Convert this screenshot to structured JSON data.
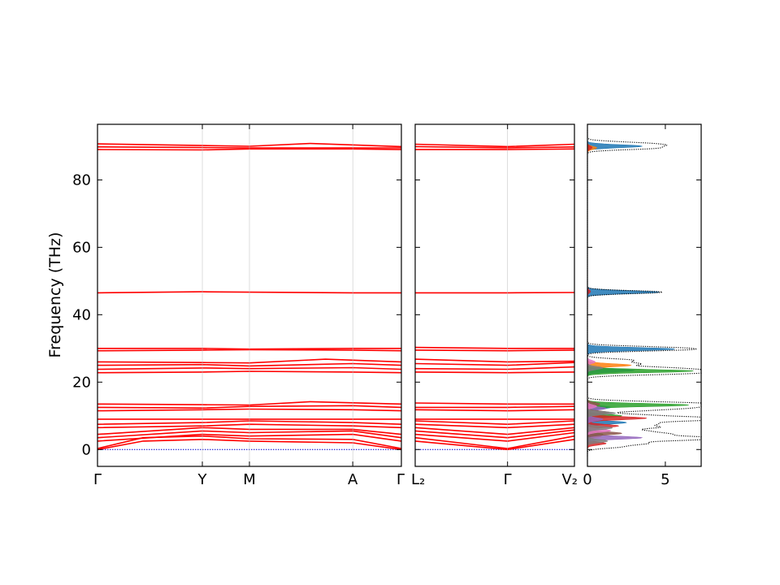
{
  "chart_data": [
    {
      "type": "line",
      "panel": "band-structure-path-1",
      "ylabel": "Frequency (THz)",
      "ylim": [
        -5,
        96.5
      ],
      "yticks": [
        0,
        20,
        40,
        60,
        80
      ],
      "xticks": [
        {
          "label": "Γ",
          "pos": 0.0
        },
        {
          "label": "Y",
          "pos": 0.345
        },
        {
          "label": "M",
          "pos": 0.5
        },
        {
          "label": "A",
          "pos": 0.84
        },
        {
          "label": "Γ",
          "pos": 1.0
        }
      ],
      "band_color": "#ff0000",
      "acoustic_color": "#0000cc",
      "bands": [
        {
          "x": [
            0,
            0.345,
            0.5,
            0.84,
            1
          ],
          "y": [
            0,
            0,
            0,
            0,
            0
          ],
          "acoustic": true
        },
        {
          "x": [
            0,
            0.15,
            0.345,
            0.5,
            0.84,
            1
          ],
          "y": [
            0,
            2.5,
            3.0,
            2.5,
            2.0,
            0
          ]
        },
        {
          "x": [
            0,
            0.15,
            0.345,
            0.5,
            0.84,
            1
          ],
          "y": [
            0.3,
            3.5,
            4.0,
            3.2,
            3.0,
            0.3
          ]
        },
        {
          "x": [
            0,
            0.345,
            0.5,
            0.84,
            1
          ],
          "y": [
            2.5,
            4.5,
            4.0,
            4.5,
            2.5
          ]
        },
        {
          "x": [
            0,
            0.345,
            0.5,
            0.84,
            1
          ],
          "y": [
            3.5,
            5.5,
            5.0,
            5.5,
            3.5
          ]
        },
        {
          "x": [
            0,
            0.345,
            0.5,
            0.84,
            1
          ],
          "y": [
            4.5,
            6.5,
            6.0,
            6.0,
            4.5
          ]
        },
        {
          "x": [
            0,
            0.345,
            0.5,
            0.84,
            1
          ],
          "y": [
            6.5,
            7.0,
            7.5,
            7.0,
            6.5
          ]
        },
        {
          "x": [
            0,
            0.345,
            0.5,
            0.84,
            1
          ],
          "y": [
            7.5,
            8.0,
            8.5,
            8.0,
            7.5
          ]
        },
        {
          "x": [
            0,
            0.345,
            0.5,
            0.84,
            1
          ],
          "y": [
            9.0,
            9.0,
            9.0,
            9.0,
            9.0
          ]
        },
        {
          "x": [
            0,
            0.345,
            0.5,
            0.84,
            1
          ],
          "y": [
            11.5,
            11.8,
            12.0,
            11.8,
            11.5
          ]
        },
        {
          "x": [
            0,
            0.345,
            0.5,
            0.84,
            1
          ],
          "y": [
            12.5,
            12.3,
            12.8,
            13.0,
            12.5
          ]
        },
        {
          "x": [
            0,
            0.345,
            0.5,
            0.7,
            1
          ],
          "y": [
            13.5,
            13.3,
            13.2,
            14.2,
            13.5
          ]
        },
        {
          "x": [
            0,
            0.345,
            0.5,
            0.84,
            1
          ],
          "y": [
            22.8,
            23.0,
            23.2,
            23.0,
            22.8
          ]
        },
        {
          "x": [
            0,
            0.345,
            0.5,
            0.84,
            1
          ],
          "y": [
            23.8,
            24.2,
            24.0,
            24.3,
            23.8
          ]
        },
        {
          "x": [
            0,
            0.345,
            0.5,
            0.84,
            1
          ],
          "y": [
            25.0,
            25.2,
            24.8,
            25.5,
            25.0
          ]
        },
        {
          "x": [
            0,
            0.345,
            0.5,
            0.75,
            1
          ],
          "y": [
            26.0,
            25.8,
            25.7,
            26.8,
            26.0
          ]
        },
        {
          "x": [
            0,
            0.345,
            0.5,
            0.84,
            1
          ],
          "y": [
            29.3,
            29.5,
            29.6,
            29.5,
            29.3
          ]
        },
        {
          "x": [
            0,
            0.345,
            0.5,
            0.84,
            1
          ],
          "y": [
            30.0,
            30.0,
            29.8,
            30.0,
            30.0
          ]
        },
        {
          "x": [
            0,
            0.345,
            0.5,
            0.84,
            1
          ],
          "y": [
            46.5,
            46.8,
            46.7,
            46.5,
            46.5
          ]
        },
        {
          "x": [
            0,
            0.345,
            0.5,
            0.84,
            1
          ],
          "y": [
            89.0,
            88.9,
            89.2,
            89.2,
            89.0
          ]
        },
        {
          "x": [
            0,
            0.345,
            0.5,
            0.84,
            1
          ],
          "y": [
            89.8,
            89.6,
            89.5,
            89.5,
            89.5
          ]
        },
        {
          "x": [
            0,
            0.345,
            0.5,
            0.7,
            1
          ],
          "y": [
            90.7,
            90.2,
            90.0,
            90.8,
            89.9
          ]
        }
      ]
    },
    {
      "type": "line",
      "panel": "band-structure-path-2",
      "ylim": [
        -5,
        96.5
      ],
      "xticks": [
        {
          "label": "L₂",
          "pos": 0.0
        },
        {
          "label": "Γ",
          "pos": 0.58
        },
        {
          "label": "V₂",
          "pos": 1.0
        }
      ],
      "band_color": "#ff0000",
      "acoustic_color": "#0000cc",
      "bands": [
        {
          "x": [
            0,
            0.58,
            1
          ],
          "y": [
            0,
            0,
            0
          ],
          "acoustic": true
        },
        {
          "x": [
            0,
            0.58,
            1
          ],
          "y": [
            2.5,
            0,
            3.0
          ]
        },
        {
          "x": [
            0,
            0.58,
            1
          ],
          "y": [
            3.5,
            0.3,
            4.0
          ]
        },
        {
          "x": [
            0,
            0.58,
            1
          ],
          "y": [
            4.5,
            2.5,
            5.0
          ]
        },
        {
          "x": [
            0,
            0.58,
            1
          ],
          "y": [
            5.5,
            3.5,
            5.8
          ]
        },
        {
          "x": [
            0,
            0.58,
            1
          ],
          "y": [
            6.5,
            4.5,
            6.5
          ]
        },
        {
          "x": [
            0,
            0.58,
            1
          ],
          "y": [
            7.5,
            6.5,
            7.5
          ]
        },
        {
          "x": [
            0,
            0.58,
            1
          ],
          "y": [
            8.5,
            7.5,
            8.5
          ]
        },
        {
          "x": [
            0,
            0.58,
            1
          ],
          "y": [
            9.0,
            9.0,
            9.0
          ]
        },
        {
          "x": [
            0,
            0.58,
            1
          ],
          "y": [
            11.8,
            11.5,
            11.8
          ]
        },
        {
          "x": [
            0,
            0.58,
            1
          ],
          "y": [
            12.5,
            12.5,
            12.8
          ]
        },
        {
          "x": [
            0,
            0.58,
            1
          ],
          "y": [
            13.8,
            13.5,
            13.5
          ]
        },
        {
          "x": [
            0,
            0.58,
            1
          ],
          "y": [
            23.0,
            22.8,
            23.0
          ]
        },
        {
          "x": [
            0,
            0.58,
            1
          ],
          "y": [
            24.0,
            23.8,
            24.5
          ]
        },
        {
          "x": [
            0,
            0.58,
            1
          ],
          "y": [
            25.5,
            25.0,
            25.8
          ]
        },
        {
          "x": [
            0,
            0.58,
            1
          ],
          "y": [
            26.8,
            26.0,
            26.2
          ]
        },
        {
          "x": [
            0,
            0.58,
            1
          ],
          "y": [
            29.5,
            29.3,
            29.5
          ]
        },
        {
          "x": [
            0,
            0.58,
            1
          ],
          "y": [
            30.3,
            30.0,
            30.0
          ]
        },
        {
          "x": [
            0,
            0.58,
            1
          ],
          "y": [
            46.5,
            46.5,
            46.6
          ]
        },
        {
          "x": [
            0,
            0.58,
            1
          ],
          "y": [
            89.0,
            89.0,
            89.2
          ]
        },
        {
          "x": [
            0,
            0.58,
            1
          ],
          "y": [
            89.9,
            89.5,
            89.8
          ]
        },
        {
          "x": [
            0,
            0.58,
            1
          ],
          "y": [
            90.6,
            89.9,
            90.6
          ]
        }
      ]
    },
    {
      "type": "area",
      "panel": "density-of-states",
      "xlim": [
        0,
        7.3
      ],
      "ylim": [
        -5,
        96.5
      ],
      "xticks": [
        {
          "label": "0",
          "pos": 0
        },
        {
          "label": "5",
          "pos": 5
        }
      ],
      "total_color": "#000000",
      "series": [
        {
          "color": "#1f77b4",
          "peaks": [
            [
              90.0,
              3.5
            ],
            [
              46.7,
              4.6
            ],
            [
              29.8,
              5.6
            ],
            [
              23.5,
              3.0
            ],
            [
              12.5,
              1.5
            ],
            [
              8.0,
              2.5
            ]
          ]
        },
        {
          "color": "#ff7f0e",
          "peaks": [
            [
              89.5,
              0.6
            ],
            [
              25.0,
              2.8
            ],
            [
              13.0,
              0.8
            ],
            [
              10.0,
              1.2
            ],
            [
              4.0,
              0.9
            ]
          ]
        },
        {
          "color": "#2ca02c",
          "peaks": [
            [
              23.3,
              6.8
            ],
            [
              13.2,
              6.5
            ],
            [
              10.0,
              2.2
            ],
            [
              4.5,
              1.0
            ]
          ]
        },
        {
          "color": "#d62728",
          "peaks": [
            [
              89.6,
              0.3
            ],
            [
              46.9,
              0.2
            ],
            [
              9.3,
              3.8
            ],
            [
              7.0,
              2.0
            ],
            [
              1.8,
              1.2
            ]
          ]
        },
        {
          "color": "#9467bd",
          "peaks": [
            [
              12.2,
              1.2
            ],
            [
              9.0,
              1.0
            ],
            [
              3.5,
              3.5
            ]
          ]
        },
        {
          "color": "#8c564b",
          "peaks": [
            [
              13.5,
              0.8
            ],
            [
              11.0,
              1.4
            ],
            [
              4.8,
              2.2
            ]
          ]
        },
        {
          "color": "#e377c2",
          "peaks": [
            [
              26.0,
              0.5
            ],
            [
              12.8,
              0.6
            ],
            [
              5.6,
              1.5
            ]
          ]
        },
        {
          "color": "#7f7f7f",
          "peaks": [
            [
              24.2,
              1.0
            ],
            [
              10.8,
              1.8
            ],
            [
              6.4,
              1.6
            ],
            [
              2.5,
              1.3
            ]
          ]
        }
      ],
      "total_peaks": [
        [
          91.0,
          2.5
        ],
        [
          90.3,
          3.8
        ],
        [
          89.4,
          4.0
        ],
        [
          46.7,
          4.8
        ],
        [
          30.3,
          4.0
        ],
        [
          29.6,
          5.3
        ],
        [
          26.5,
          2.8
        ],
        [
          25.4,
          3.2
        ],
        [
          24.2,
          4.8
        ],
        [
          23.3,
          7.2
        ],
        [
          22.5,
          5.0
        ],
        [
          14.0,
          3.8
        ],
        [
          13.3,
          7.3
        ],
        [
          12.4,
          5.3
        ],
        [
          11.6,
          3.0
        ],
        [
          10.2,
          3.3
        ],
        [
          9.3,
          7.3
        ],
        [
          8.6,
          4.8
        ],
        [
          7.6,
          3.8
        ],
        [
          6.6,
          4.2
        ],
        [
          5.5,
          3.2
        ],
        [
          4.6,
          4.5
        ],
        [
          3.6,
          6.2
        ],
        [
          2.9,
          5.3
        ],
        [
          1.8,
          3.5
        ],
        [
          0.8,
          2.0
        ]
      ]
    }
  ]
}
